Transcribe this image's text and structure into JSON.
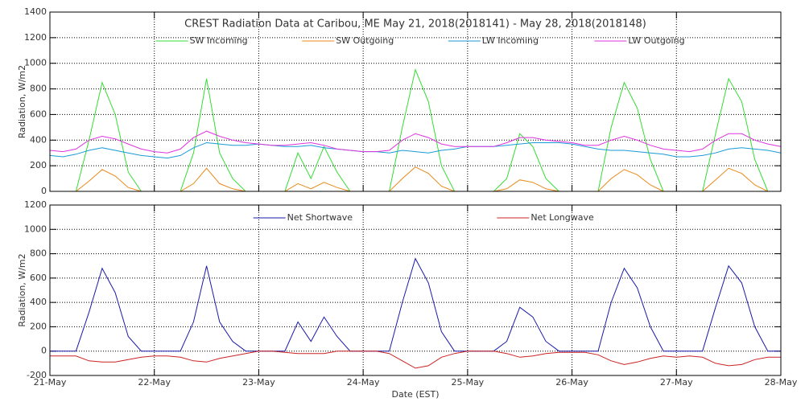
{
  "chart_data": [
    {
      "type": "line",
      "title": "CREST Radiation Data at Caribou, ME   May 21, 2018(2018141) - May 28, 2018(2018148)",
      "y_label": "Radiation, W/m2",
      "x": [
        21,
        21.125,
        21.25,
        21.375,
        21.5,
        21.625,
        21.75,
        21.875,
        22,
        22.125,
        22.25,
        22.375,
        22.5,
        22.625,
        22.75,
        22.875,
        23,
        23.125,
        23.25,
        23.375,
        23.5,
        23.625,
        23.75,
        23.875,
        24,
        24.125,
        24.25,
        24.375,
        24.5,
        24.625,
        24.75,
        24.875,
        25,
        25.125,
        25.25,
        25.375,
        25.5,
        25.625,
        25.75,
        25.875,
        26,
        26.125,
        26.25,
        26.375,
        26.5,
        26.625,
        26.75,
        26.875,
        27,
        27.125,
        27.25,
        27.375,
        27.5,
        27.625,
        27.75,
        27.875,
        28
      ],
      "xlim": [
        21,
        28
      ],
      "xticks": [
        21,
        22,
        23,
        24,
        25,
        26,
        27,
        28
      ],
      "ylim": [
        0,
        1400
      ],
      "yticks": [
        0,
        200,
        400,
        600,
        800,
        1000,
        1200,
        1400
      ],
      "grid": true,
      "series": [
        {
          "name": "SW Incoming",
          "color": "#33dd33",
          "values": [
            0,
            0,
            0,
            400,
            850,
            600,
            150,
            0,
            0,
            0,
            0,
            300,
            880,
            300,
            100,
            0,
            0,
            0,
            0,
            300,
            100,
            350,
            150,
            0,
            0,
            0,
            0,
            500,
            950,
            700,
            200,
            0,
            0,
            0,
            0,
            100,
            450,
            350,
            100,
            0,
            0,
            0,
            0,
            500,
            850,
            650,
            250,
            0,
            0,
            0,
            0,
            450,
            880,
            700,
            250,
            0,
            0
          ]
        },
        {
          "name": "SW Outgoing",
          "color": "#e88a1a",
          "values": [
            0,
            0,
            0,
            80,
            170,
            120,
            30,
            0,
            0,
            0,
            0,
            60,
            180,
            60,
            20,
            0,
            0,
            0,
            0,
            60,
            20,
            70,
            30,
            0,
            0,
            0,
            0,
            100,
            190,
            140,
            40,
            0,
            0,
            0,
            0,
            20,
            90,
            70,
            20,
            0,
            0,
            0,
            0,
            100,
            170,
            130,
            50,
            0,
            0,
            0,
            0,
            90,
            180,
            140,
            50,
            0,
            0
          ]
        },
        {
          "name": "LW Incoming",
          "color": "#1a9ad6",
          "values": [
            280,
            270,
            290,
            320,
            340,
            320,
            300,
            280,
            270,
            260,
            280,
            340,
            380,
            370,
            360,
            360,
            370,
            360,
            350,
            350,
            360,
            340,
            330,
            320,
            310,
            310,
            300,
            320,
            310,
            300,
            320,
            330,
            350,
            350,
            350,
            360,
            370,
            380,
            380,
            380,
            370,
            350,
            330,
            320,
            320,
            310,
            300,
            290,
            270,
            270,
            280,
            300,
            330,
            340,
            330,
            320,
            300
          ]
        },
        {
          "name": "LW Outgoing",
          "color": "#dd33dd",
          "values": [
            320,
            310,
            330,
            400,
            430,
            410,
            370,
            330,
            310,
            300,
            330,
            420,
            470,
            430,
            400,
            380,
            370,
            360,
            360,
            370,
            380,
            360,
            330,
            320,
            310,
            310,
            320,
            400,
            450,
            420,
            370,
            350,
            350,
            350,
            350,
            380,
            420,
            420,
            400,
            390,
            380,
            360,
            360,
            400,
            430,
            400,
            360,
            330,
            320,
            310,
            330,
            400,
            450,
            450,
            400,
            370,
            350
          ]
        }
      ]
    },
    {
      "type": "line",
      "y_label": "Radiation, W/m2",
      "x_label": "Date (EST)",
      "x": [
        21,
        21.125,
        21.25,
        21.375,
        21.5,
        21.625,
        21.75,
        21.875,
        22,
        22.125,
        22.25,
        22.375,
        22.5,
        22.625,
        22.75,
        22.875,
        23,
        23.125,
        23.25,
        23.375,
        23.5,
        23.625,
        23.75,
        23.875,
        24,
        24.125,
        24.25,
        24.375,
        24.5,
        24.625,
        24.75,
        24.875,
        25,
        25.125,
        25.25,
        25.375,
        25.5,
        25.625,
        25.75,
        25.875,
        26,
        26.125,
        26.25,
        26.375,
        26.5,
        26.625,
        26.75,
        26.875,
        27,
        27.125,
        27.25,
        27.375,
        27.5,
        27.625,
        27.75,
        27.875,
        28
      ],
      "xlim": [
        21,
        28
      ],
      "xticks": [
        {
          "value": 21,
          "label": "21-May"
        },
        {
          "value": 22,
          "label": "22-May"
        },
        {
          "value": 23,
          "label": "23-May"
        },
        {
          "value": 24,
          "label": "24-May"
        },
        {
          "value": 25,
          "label": "25-May"
        },
        {
          "value": 26,
          "label": "26-May"
        },
        {
          "value": 27,
          "label": "27-May"
        },
        {
          "value": 28,
          "label": "28-May"
        }
      ],
      "ylim": [
        -200,
        1200
      ],
      "yticks": [
        -200,
        0,
        200,
        400,
        600,
        800,
        1000,
        1200
      ],
      "grid": true,
      "series": [
        {
          "name": "Net Shortwave",
          "color": "#1a1aaa",
          "values": [
            0,
            0,
            0,
            320,
            680,
            480,
            120,
            0,
            0,
            0,
            0,
            240,
            700,
            240,
            80,
            0,
            0,
            0,
            0,
            240,
            80,
            280,
            120,
            0,
            0,
            0,
            0,
            400,
            760,
            560,
            160,
            0,
            0,
            0,
            0,
            80,
            360,
            280,
            80,
            0,
            0,
            0,
            0,
            400,
            680,
            520,
            200,
            0,
            0,
            0,
            0,
            360,
            700,
            560,
            200,
            0,
            0
          ]
        },
        {
          "name": "Net Longwave",
          "color": "#cc2222",
          "values": [
            -40,
            -40,
            -40,
            -80,
            -90,
            -90,
            -70,
            -50,
            -40,
            -40,
            -50,
            -80,
            -90,
            -60,
            -40,
            -20,
            0,
            0,
            -10,
            -20,
            -20,
            -20,
            0,
            0,
            0,
            0,
            -20,
            -80,
            -140,
            -120,
            -50,
            -20,
            0,
            0,
            0,
            -20,
            -50,
            -40,
            -20,
            -10,
            -10,
            -10,
            -30,
            -80,
            -110,
            -90,
            -60,
            -40,
            -50,
            -40,
            -50,
            -100,
            -120,
            -110,
            -70,
            -50,
            -50
          ]
        }
      ]
    }
  ]
}
